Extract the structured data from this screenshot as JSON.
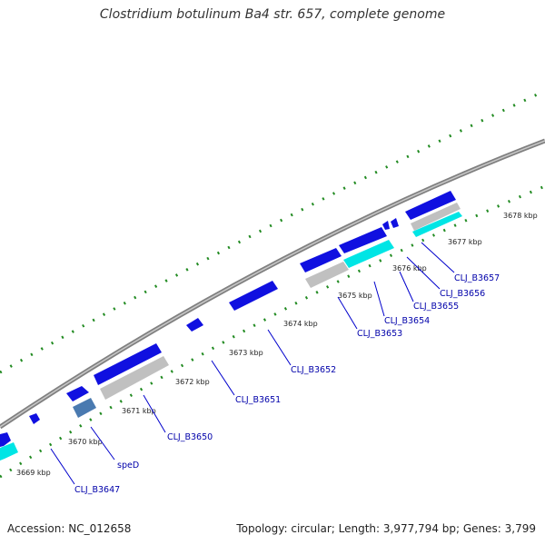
{
  "title": "Clostridium botulinum Ba4 str. 657, complete genome",
  "footer": {
    "accession": "Accession: NC_012658",
    "summary": "Topology: circular; Length: 3,977,794 bp; Genes: 3,799"
  },
  "ticks": [
    "3669 kbp",
    "3670 kbp",
    "3671 kbp",
    "3672 kbp",
    "3673 kbp",
    "3674 kbp",
    "3675 kbp",
    "3676 kbp",
    "3677 kbp",
    "3678 kbp"
  ],
  "genes": [
    "CLJ_B3647",
    "speD",
    "CLJ_B3650",
    "CLJ_B3651",
    "CLJ_B3652",
    "CLJ_B3653",
    "CLJ_B3654",
    "CLJ_B3655",
    "CLJ_B3656",
    "CLJ_B3657"
  ],
  "colors": {
    "backbone": "#808080",
    "gene_forward": "#1010e0",
    "gene_light": "#c0c0c0",
    "gene_cyan": "#00e5e5",
    "gene_steel": "#4a7ab0",
    "tick_dots": "#228b22",
    "label": "#0000aa"
  }
}
